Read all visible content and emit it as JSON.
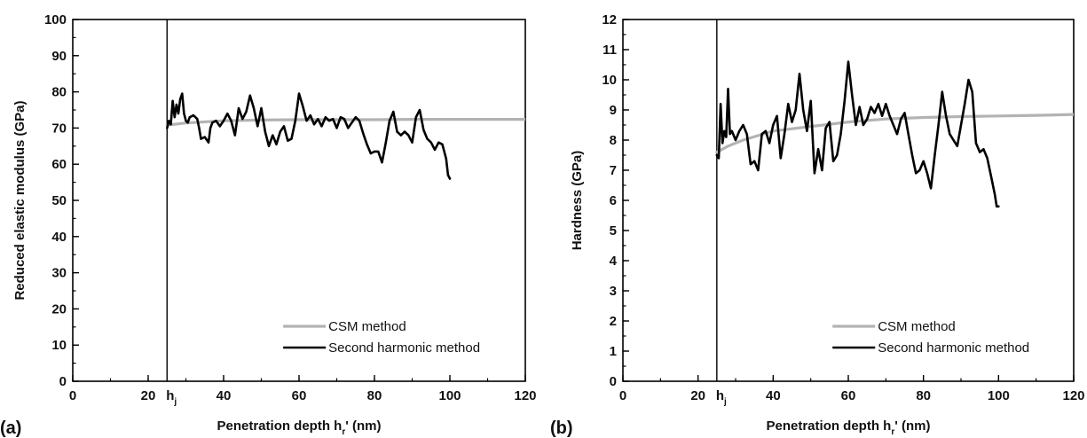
{
  "chart_data": [
    {
      "type": "line",
      "panel_label": "(a)",
      "xlabel": "Penetration depth h",
      "xlabel_sub": "r",
      "xlabel_tail": "' (nm)",
      "ylabel": "Reduced elastic modulus (GPa)",
      "xlim": [
        0,
        120
      ],
      "ylim": [
        0,
        100
      ],
      "x_ticks": [
        0,
        20,
        40,
        60,
        80,
        100,
        120
      ],
      "y_ticks": [
        0,
        10,
        20,
        30,
        40,
        50,
        60,
        70,
        80,
        90,
        100
      ],
      "x_minor_step": 10,
      "y_minor_step": 5,
      "marker_line": {
        "x": 25,
        "label": "h",
        "label_sub": "j"
      },
      "legend_position": "bottom-right",
      "series": [
        {
          "name": "CSM method",
          "color": "#b3b3b3",
          "x": [
            25,
            30,
            40,
            50,
            60,
            70,
            80,
            90,
            100,
            110,
            120
          ],
          "y": [
            70.8,
            71.4,
            72.0,
            72.2,
            72.3,
            72.3,
            72.3,
            72.4,
            72.4,
            72.4,
            72.4
          ]
        },
        {
          "name": "Second harmonic method",
          "color": "#000000",
          "x": [
            25,
            25.5,
            26,
            26.5,
            27,
            27.5,
            28,
            28.5,
            29,
            29.5,
            30,
            30.5,
            31,
            32,
            33,
            33.5,
            34,
            35,
            36,
            36.5,
            37,
            38,
            39,
            40,
            41,
            42,
            43,
            44,
            45,
            46,
            47,
            48,
            49,
            50,
            51,
            52,
            53,
            54,
            55,
            56,
            57,
            58,
            59,
            60,
            61,
            62,
            63,
            64,
            65,
            66,
            67,
            68,
            69,
            70,
            71,
            72,
            73,
            74,
            75,
            76,
            77,
            78,
            79,
            80,
            81,
            82,
            83,
            84,
            85,
            86,
            87,
            88,
            89,
            90,
            91,
            92,
            93,
            94,
            95,
            96,
            97,
            98,
            99,
            99.5,
            100
          ],
          "y": [
            70,
            72,
            71,
            77.5,
            73,
            76.5,
            74,
            78,
            79.5,
            74,
            72,
            71.5,
            73,
            73.5,
            72.5,
            70,
            67,
            67.5,
            66,
            70,
            71.5,
            72,
            70.5,
            72,
            74,
            72,
            68,
            75.5,
            72.5,
            74.5,
            79,
            75.5,
            70.5,
            75.5,
            69,
            65,
            68,
            65.5,
            69,
            70.5,
            66.5,
            67,
            72,
            79.5,
            76,
            72,
            73.5,
            71,
            72.5,
            70.5,
            73,
            72,
            72.5,
            70,
            73,
            72.5,
            70,
            71.5,
            73,
            72,
            68.5,
            65.5,
            63,
            63.5,
            63.5,
            60.5,
            66,
            72,
            74.5,
            69,
            68,
            69,
            68,
            66,
            73,
            75,
            69.5,
            67,
            66,
            64,
            66,
            65.5,
            61.5,
            57,
            56
          ]
        }
      ]
    },
    {
      "type": "line",
      "panel_label": "(b)",
      "xlabel": "Penetration depth h",
      "xlabel_sub": "r",
      "xlabel_tail": "' (nm)",
      "ylabel": "Hardness (GPa)",
      "xlim": [
        0,
        120
      ],
      "ylim": [
        0,
        12
      ],
      "x_ticks": [
        0,
        20,
        40,
        60,
        80,
        100,
        120
      ],
      "y_ticks": [
        0,
        1,
        2,
        3,
        4,
        5,
        6,
        7,
        8,
        9,
        10,
        11,
        12
      ],
      "x_minor_step": 10,
      "y_minor_step": 0.5,
      "marker_line": {
        "x": 25,
        "label": "h",
        "label_sub": "j"
      },
      "legend_position": "bottom-right",
      "series": [
        {
          "name": "CSM method",
          "color": "#b3b3b3",
          "x": [
            25,
            28,
            32,
            40,
            50,
            60,
            70,
            80,
            90,
            100,
            110,
            120
          ],
          "y": [
            7.6,
            7.8,
            8.0,
            8.3,
            8.45,
            8.6,
            8.7,
            8.75,
            8.78,
            8.8,
            8.82,
            8.85
          ]
        },
        {
          "name": "Second harmonic method",
          "color": "#000000",
          "x": [
            25,
            25.5,
            26,
            26.5,
            27,
            27.5,
            28,
            28.5,
            29,
            30,
            31,
            32,
            33,
            34,
            35,
            36,
            37,
            38,
            39,
            40,
            41,
            42,
            43,
            44,
            45,
            46,
            47,
            48,
            49,
            50,
            51,
            52,
            53,
            54,
            55,
            56,
            57,
            58,
            59,
            60,
            61,
            62,
            63,
            64,
            65,
            66,
            67,
            68,
            69,
            70,
            71,
            72,
            73,
            74,
            75,
            76,
            77,
            78,
            79,
            80,
            81,
            82,
            83,
            84,
            85,
            86,
            87,
            88,
            89,
            90,
            91,
            92,
            93,
            94,
            95,
            96,
            97,
            98,
            99,
            99.5,
            100
          ],
          "y": [
            7.5,
            7.4,
            9.2,
            7.9,
            8.3,
            8.1,
            9.7,
            8.2,
            8.3,
            8.0,
            8.3,
            8.5,
            8.2,
            7.2,
            7.3,
            7.0,
            8.2,
            8.3,
            7.9,
            8.5,
            8.8,
            7.4,
            8.2,
            9.2,
            8.6,
            9.0,
            10.2,
            9.0,
            8.3,
            9.3,
            6.9,
            7.7,
            7.0,
            8.4,
            8.6,
            7.3,
            7.5,
            8.2,
            9.3,
            10.6,
            9.5,
            8.5,
            9.1,
            8.5,
            8.7,
            9.1,
            8.9,
            9.2,
            8.8,
            9.2,
            8.8,
            8.5,
            8.2,
            8.7,
            8.9,
            8.2,
            7.5,
            6.9,
            7.0,
            7.3,
            6.9,
            6.4,
            7.5,
            8.5,
            9.6,
            8.8,
            8.2,
            8.0,
            7.8,
            8.5,
            9.2,
            10.0,
            9.6,
            7.9,
            7.6,
            7.7,
            7.4,
            6.8,
            6.2,
            5.8,
            5.8
          ]
        }
      ]
    }
  ]
}
